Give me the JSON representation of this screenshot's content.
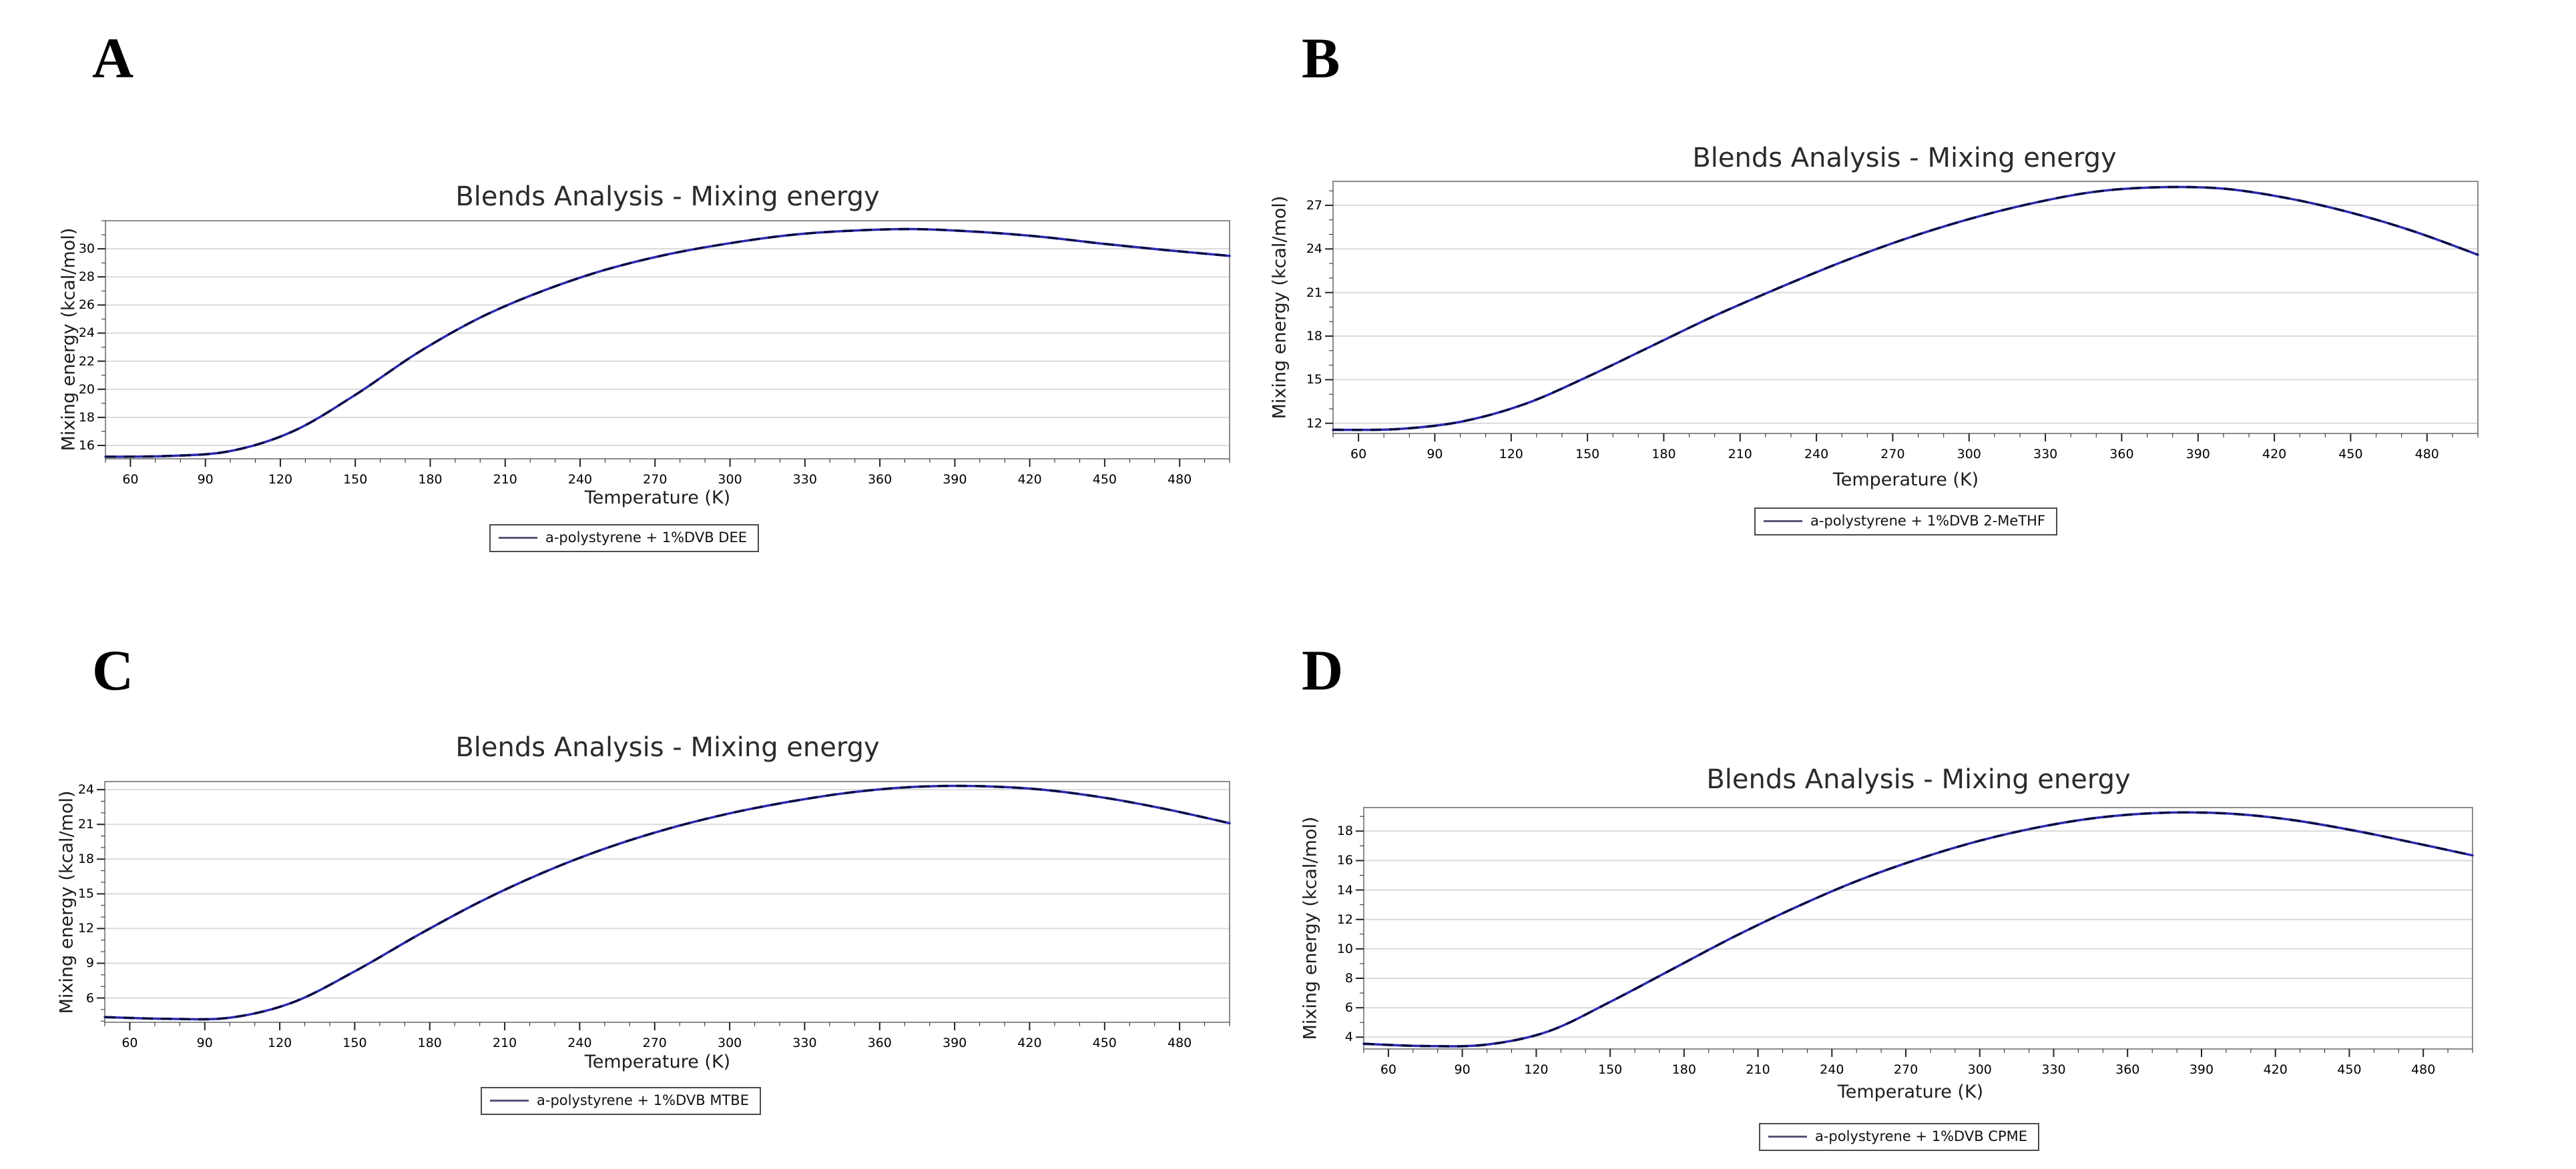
{
  "style": {
    "line_color": "#2a2aad",
    "line_dash_color": "#0b0b44",
    "grid_color": "#dadada",
    "frame_color": "#8c8c8c",
    "tick_color": "#222222",
    "background": "#ffffff"
  },
  "chart_data": [
    {
      "panel": "A",
      "type": "line",
      "title": "Blends Analysis - Mixing energy",
      "xlabel": "Temperature (K)",
      "ylabel": "Mixing energy (kcal/mol)",
      "grid": "horizontal",
      "legend_position": "bottom",
      "xlim": [
        50,
        500
      ],
      "ylim": [
        15.05,
        32.0
      ],
      "xticks": [
        60,
        90,
        120,
        150,
        180,
        210,
        240,
        270,
        300,
        330,
        360,
        390,
        420,
        450,
        480
      ],
      "yticks": [
        16,
        18,
        20,
        22,
        24,
        26,
        28,
        30
      ],
      "series": [
        {
          "name": "a-polystyrene + 1%DVB DEE",
          "x": [
            50,
            75,
            100,
            125,
            150,
            175,
            200,
            225,
            250,
            275,
            300,
            325,
            350,
            375,
            400,
            425,
            450,
            475,
            500
          ],
          "y": [
            15.2,
            15.25,
            15.6,
            17.0,
            19.6,
            22.6,
            25.1,
            27.0,
            28.5,
            29.6,
            30.4,
            31.0,
            31.3,
            31.4,
            31.2,
            30.85,
            30.35,
            29.9,
            29.5
          ]
        }
      ]
    },
    {
      "panel": "B",
      "type": "line",
      "title": "Blends Analysis - Mixing energy",
      "xlabel": "Temperature (K)",
      "ylabel": "Mixing energy (kcal/mol)",
      "grid": "horizontal",
      "legend_position": "bottom",
      "xlim": [
        50,
        500
      ],
      "ylim": [
        11.3,
        28.65
      ],
      "xticks": [
        60,
        90,
        120,
        150,
        180,
        210,
        240,
        270,
        300,
        330,
        360,
        390,
        420,
        450,
        480
      ],
      "yticks": [
        12,
        15,
        18,
        21,
        24,
        27
      ],
      "series": [
        {
          "name": "a-polystyrene + 1%DVB 2-MeTHF",
          "x": [
            50,
            75,
            100,
            125,
            150,
            175,
            200,
            225,
            250,
            275,
            300,
            325,
            350,
            375,
            400,
            425,
            450,
            475,
            500
          ],
          "y": [
            11.55,
            11.6,
            12.1,
            13.3,
            15.2,
            17.3,
            19.4,
            21.3,
            23.1,
            24.7,
            26.05,
            27.15,
            27.95,
            28.25,
            28.15,
            27.5,
            26.5,
            25.2,
            23.6
          ]
        }
      ]
    },
    {
      "panel": "C",
      "type": "line",
      "title": "Blends Analysis - Mixing energy",
      "xlabel": "Temperature (K)",
      "ylabel": "Mixing energy (kcal/mol)",
      "grid": "horizontal",
      "legend_position": "bottom",
      "xlim": [
        50,
        500
      ],
      "ylim": [
        3.9,
        24.7
      ],
      "xticks": [
        60,
        90,
        120,
        150,
        180,
        210,
        240,
        270,
        300,
        330,
        360,
        390,
        420,
        450,
        480
      ],
      "yticks": [
        6,
        9,
        12,
        15,
        18,
        21,
        24
      ],
      "series": [
        {
          "name": "a-polystyrene + 1%DVB MTBE",
          "x": [
            50,
            75,
            100,
            125,
            150,
            175,
            200,
            225,
            250,
            275,
            300,
            325,
            350,
            375,
            400,
            425,
            450,
            475,
            500
          ],
          "y": [
            4.35,
            4.2,
            4.3,
            5.6,
            8.3,
            11.4,
            14.3,
            16.8,
            18.9,
            20.6,
            21.95,
            23.0,
            23.8,
            24.25,
            24.3,
            24.0,
            23.3,
            22.3,
            21.1
          ]
        }
      ]
    },
    {
      "panel": "D",
      "type": "line",
      "title": "Blends Analysis - Mixing energy",
      "xlabel": "Temperature (K)",
      "ylabel": "Mixing energy (kcal/mol)",
      "grid": "horizontal",
      "legend_position": "bottom",
      "xlim": [
        50,
        500
      ],
      "ylim": [
        3.2,
        19.6
      ],
      "xticks": [
        60,
        90,
        120,
        150,
        180,
        210,
        240,
        270,
        300,
        330,
        360,
        390,
        420,
        450,
        480
      ],
      "yticks": [
        4,
        6,
        8,
        10,
        12,
        14,
        16,
        18
      ],
      "series": [
        {
          "name": "a-polystyrene + 1%DVB CPME",
          "x": [
            50,
            75,
            100,
            125,
            150,
            175,
            200,
            225,
            250,
            275,
            300,
            325,
            350,
            375,
            400,
            425,
            450,
            475,
            500
          ],
          "y": [
            3.55,
            3.4,
            3.5,
            4.4,
            6.4,
            8.6,
            10.8,
            12.8,
            14.6,
            16.1,
            17.35,
            18.3,
            18.95,
            19.25,
            19.2,
            18.8,
            18.1,
            17.25,
            16.35
          ]
        }
      ]
    }
  ]
}
